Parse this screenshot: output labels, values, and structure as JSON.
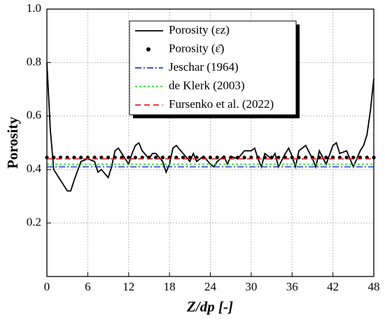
{
  "chart_data": {
    "type": "line",
    "xlabel": "Z/dp [-]",
    "ylabel": "Porosity",
    "xlim": [
      0,
      48
    ],
    "ylim": [
      0,
      1
    ],
    "xticks": [
      0,
      6,
      12,
      18,
      24,
      30,
      36,
      42,
      48
    ],
    "yticks": [
      0.2,
      0.4,
      0.6,
      0.8,
      {
        "value": 1,
        "label": "1.0"
      }
    ],
    "grid": true,
    "legend": "upper center",
    "series": [
      {
        "name": "Porosity (εz)",
        "color": "#000000",
        "style": "solid",
        "x": [
          0,
          0.5,
          1,
          2,
          3,
          3.5,
          4,
          5,
          6,
          7,
          7.5,
          8,
          9,
          9.5,
          10,
          10.5,
          11,
          12,
          12.5,
          13,
          13.5,
          14,
          15,
          15.5,
          16,
          17,
          17.5,
          18,
          18.5,
          19,
          20,
          21,
          21.5,
          22,
          23,
          24,
          24.5,
          25,
          26,
          26.5,
          27,
          28,
          29,
          30,
          30.5,
          31,
          31.5,
          32,
          33,
          33.5,
          34,
          35,
          35.5,
          36,
          36.5,
          37,
          38,
          39,
          39.5,
          40,
          41,
          42,
          42.5,
          43,
          44,
          45,
          46,
          46.5,
          47,
          47.5,
          48
        ],
        "values": [
          0.8,
          0.55,
          0.4,
          0.36,
          0.32,
          0.32,
          0.36,
          0.43,
          0.44,
          0.43,
          0.39,
          0.4,
          0.37,
          0.41,
          0.47,
          0.48,
          0.46,
          0.42,
          0.46,
          0.49,
          0.5,
          0.47,
          0.44,
          0.46,
          0.46,
          0.43,
          0.39,
          0.42,
          0.48,
          0.49,
          0.46,
          0.43,
          0.46,
          0.43,
          0.45,
          0.42,
          0.41,
          0.43,
          0.45,
          0.42,
          0.45,
          0.44,
          0.47,
          0.47,
          0.48,
          0.44,
          0.41,
          0.46,
          0.44,
          0.46,
          0.41,
          0.46,
          0.48,
          0.45,
          0.41,
          0.47,
          0.49,
          0.44,
          0.41,
          0.47,
          0.42,
          0.49,
          0.5,
          0.46,
          0.47,
          0.41,
          0.47,
          0.49,
          0.53,
          0.62,
          0.74
        ]
      },
      {
        "name": "Porosity (ε̄)",
        "color": "#000000",
        "style": "dots",
        "x": [
          0,
          1,
          2,
          3,
          4,
          5,
          6,
          7,
          8,
          9,
          10,
          11,
          12,
          13,
          14,
          15,
          16,
          17,
          18,
          19,
          20,
          21,
          22,
          23,
          24,
          25,
          26,
          27,
          28,
          29,
          30,
          31,
          32,
          33,
          34,
          35,
          36,
          37,
          38,
          39,
          40,
          41,
          42,
          43,
          44,
          45,
          46,
          47,
          48
        ],
        "values": [
          0.445,
          0.445,
          0.445,
          0.445,
          0.445,
          0.445,
          0.445,
          0.445,
          0.445,
          0.445,
          0.445,
          0.445,
          0.445,
          0.445,
          0.445,
          0.445,
          0.445,
          0.445,
          0.445,
          0.445,
          0.445,
          0.445,
          0.445,
          0.445,
          0.445,
          0.445,
          0.445,
          0.445,
          0.445,
          0.445,
          0.445,
          0.445,
          0.445,
          0.445,
          0.445,
          0.445,
          0.445,
          0.445,
          0.445,
          0.445,
          0.445,
          0.445,
          0.445,
          0.445,
          0.445,
          0.445,
          0.445,
          0.445,
          0.445
        ]
      },
      {
        "name": "Jeschar (1964)",
        "color": "#1f3fbf",
        "style": "dashdot",
        "x": [
          0,
          48
        ],
        "values": [
          0.41,
          0.41
        ]
      },
      {
        "name": "de Klerk (2003)",
        "color": "#22dd22",
        "style": "dotted",
        "x": [
          0,
          48
        ],
        "values": [
          0.42,
          0.42
        ]
      },
      {
        "name": "Fursenko et al. (2022)",
        "color": "#e02020",
        "style": "dashed",
        "x": [
          0,
          48
        ],
        "values": [
          0.44,
          0.44
        ]
      }
    ]
  }
}
